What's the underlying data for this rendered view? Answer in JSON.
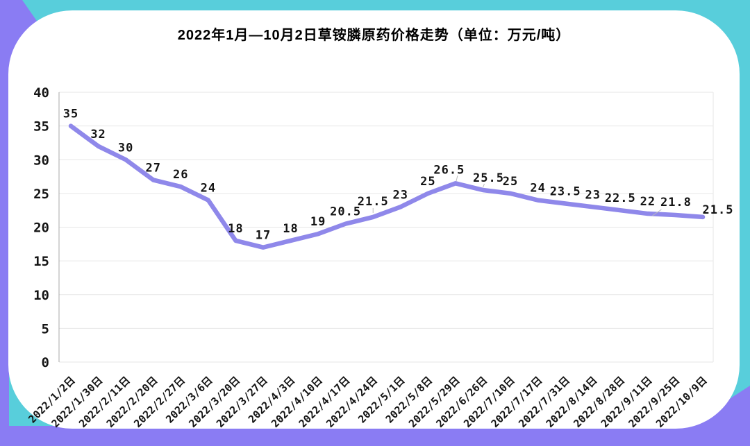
{
  "page": {
    "accent_cyan": "#58CEDB",
    "accent_purple": "#8A7CF3",
    "card_background": "#FFFFFF"
  },
  "chart_data": {
    "type": "line",
    "title": "2022年1月—10月2日草铵膦原药价格走势（单位：万元/吨）",
    "categories": [
      "2022/1/2日",
      "2022/1/30日",
      "2022/2/11日",
      "2022/2/20日",
      "2022/2/27日",
      "2022/3/6日",
      "2022/3/20日",
      "2022/3/27日",
      "2022/4/3日",
      "2022/4/10日",
      "2022/4/17日",
      "2022/4/24日",
      "2022/5/1日",
      "2022/5/8日",
      "2022/5/29日",
      "2022/6/26日",
      "2022/7/10日",
      "2022/7/17日",
      "2022/7/31日",
      "2022/8/14日",
      "2022/8/28日",
      "2022/9/11日",
      "2022/9/25日",
      "2022/10/9日"
    ],
    "values": [
      35,
      32,
      30,
      27,
      26,
      24,
      18,
      17,
      18,
      19,
      20.5,
      21.5,
      23,
      25,
      26.5,
      25.5,
      25,
      24,
      23.5,
      23,
      22.5,
      22,
      21.8,
      21.5
    ],
    "xlabel": "",
    "ylabel": "",
    "ylim": [
      0,
      40
    ],
    "yticks": [
      0,
      5,
      10,
      15,
      20,
      25,
      30,
      35,
      40
    ],
    "grid": "horizontal",
    "legend": "none",
    "data_labels": "shown",
    "line_color": "#8F88EA",
    "grid_color": "#E6E6E6",
    "axis_color": "#A8A8A8",
    "label_color": "#141414",
    "leader_line_color": "#BBBBBB"
  }
}
